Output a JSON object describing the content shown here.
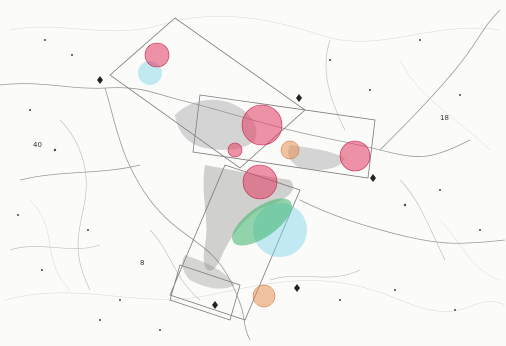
{
  "map": {
    "colors": {
      "background": "#fbfbfa",
      "roads": "#9a9a9a",
      "hotspot_pink": "#e23a62",
      "hotspot_orange": "#e88a4a",
      "hotspot_cyan": "#7ad3e6",
      "hotspot_green": "#3bb56a",
      "dense_cluster": "#555555"
    },
    "icons": [
      "location-marker-icon"
    ],
    "labels": [
      {
        "text": "40"
      },
      {
        "text": "18"
      },
      {
        "text": "8"
      }
    ]
  }
}
